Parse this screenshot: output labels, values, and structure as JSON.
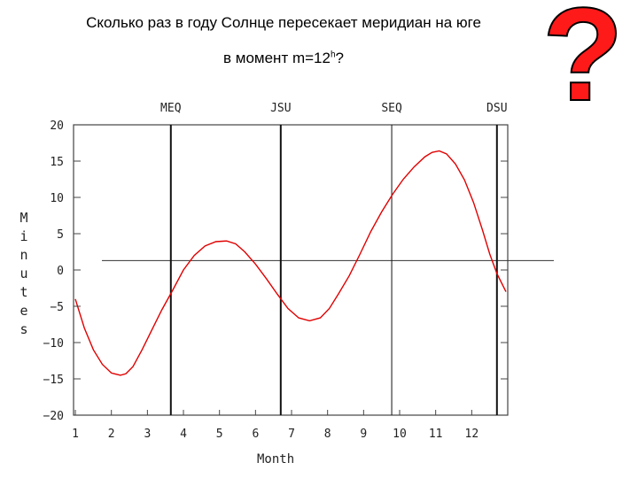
{
  "heading": {
    "line1": "Сколько раз в году Солнце пересекает меридиан на юге",
    "line2_pre": "в момент m=12",
    "line2_sup": "h",
    "line2_post": "?",
    "mark": "?"
  },
  "chart_data": {
    "type": "line",
    "title": "",
    "xlabel": "Month",
    "ylabel": "Minutes",
    "xlim": [
      1,
      12.95
    ],
    "ylim": [
      -20,
      20
    ],
    "x_ticks": [
      1,
      2,
      3,
      4,
      5,
      6,
      7,
      8,
      9,
      10,
      11,
      12
    ],
    "y_ticks": [
      20,
      15,
      10,
      5,
      0,
      -5,
      -10,
      -15,
      -20
    ],
    "y_tick_labels": [
      "20",
      "15",
      "10",
      "5",
      "0",
      "−5",
      "−10",
      "−15",
      "−20"
    ],
    "grid": false,
    "reference_line_y": 1.3,
    "markers": [
      {
        "label": "MEQ",
        "x": 3.65
      },
      {
        "label": "JSU",
        "x": 6.7
      },
      {
        "label": "SEQ",
        "x": 9.78
      },
      {
        "label": "DSU",
        "x": 12.7
      }
    ],
    "series": [
      {
        "color": "#e00000",
        "x": [
          1.0,
          1.25,
          1.5,
          1.75,
          2.0,
          2.25,
          2.4,
          2.6,
          2.85,
          3.1,
          3.4,
          3.7,
          4.0,
          4.3,
          4.6,
          4.9,
          5.2,
          5.45,
          5.7,
          6.0,
          6.3,
          6.6,
          6.9,
          7.2,
          7.5,
          7.8,
          8.05,
          8.3,
          8.6,
          8.9,
          9.2,
          9.5,
          9.8,
          10.1,
          10.4,
          10.7,
          10.9,
          11.1,
          11.3,
          11.55,
          11.8,
          12.05,
          12.3,
          12.5,
          12.7,
          12.95
        ],
        "y": [
          -4.0,
          -8.0,
          -11.0,
          -13.0,
          -14.2,
          -14.5,
          -14.3,
          -13.3,
          -11.0,
          -8.5,
          -5.5,
          -2.8,
          0.0,
          2.0,
          3.3,
          3.9,
          4.0,
          3.6,
          2.5,
          0.8,
          -1.2,
          -3.3,
          -5.3,
          -6.6,
          -7.0,
          -6.6,
          -5.3,
          -3.3,
          -0.8,
          2.2,
          5.3,
          8.0,
          10.4,
          12.5,
          14.2,
          15.6,
          16.2,
          16.4,
          16.0,
          14.6,
          12.4,
          9.3,
          5.5,
          2.2,
          -0.5,
          -3.0
        ]
      }
    ]
  }
}
